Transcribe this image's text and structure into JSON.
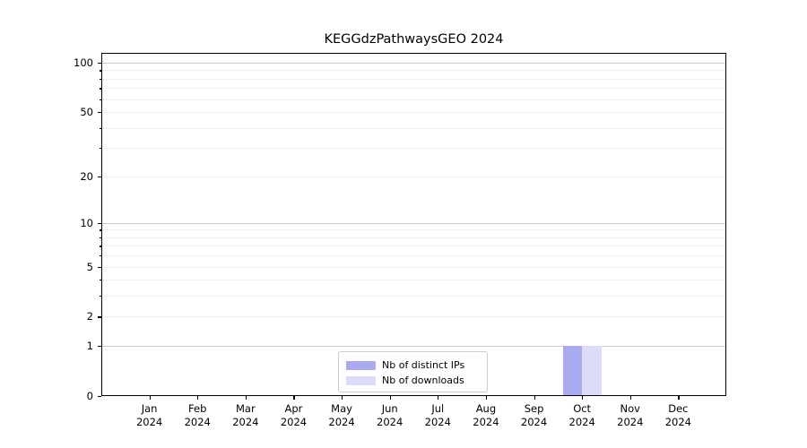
{
  "chart_data": {
    "type": "bar",
    "title": "KEGGdzPathwaysGEO 2024",
    "categories": [
      "Jan",
      "Feb",
      "Mar",
      "Apr",
      "May",
      "Jun",
      "Jul",
      "Aug",
      "Sep",
      "Oct",
      "Nov",
      "Dec"
    ],
    "category_year": "2024",
    "series": [
      {
        "name": "Nb of distinct IPs",
        "color": "#aaaaf0",
        "values": [
          0,
          0,
          0,
          0,
          0,
          0,
          0,
          0,
          0,
          1,
          0,
          0
        ]
      },
      {
        "name": "Nb of downloads",
        "color": "#dcdcf8",
        "values": [
          0,
          0,
          0,
          0,
          0,
          0,
          0,
          0,
          0,
          1,
          0,
          0
        ]
      }
    ],
    "xlabel": "",
    "ylabel": "",
    "y_scale": "log1p",
    "ylim": [
      0,
      113
    ],
    "y_tick_labels": [
      0,
      1,
      2,
      5,
      10,
      20,
      50,
      100
    ],
    "y_major_gridlines": [
      1,
      10,
      100
    ],
    "y_minor_gridlines": [
      2,
      3,
      4,
      5,
      6,
      7,
      8,
      9,
      20,
      30,
      40,
      50,
      60,
      70,
      80,
      90
    ],
    "grid": "horizontal",
    "legend_position": "bottom-center",
    "colors": {
      "major_grid": "#cccccc",
      "minor_grid": "#eeeeee",
      "axis": "#000000",
      "text": "#000000",
      "background": "#ffffff"
    }
  }
}
